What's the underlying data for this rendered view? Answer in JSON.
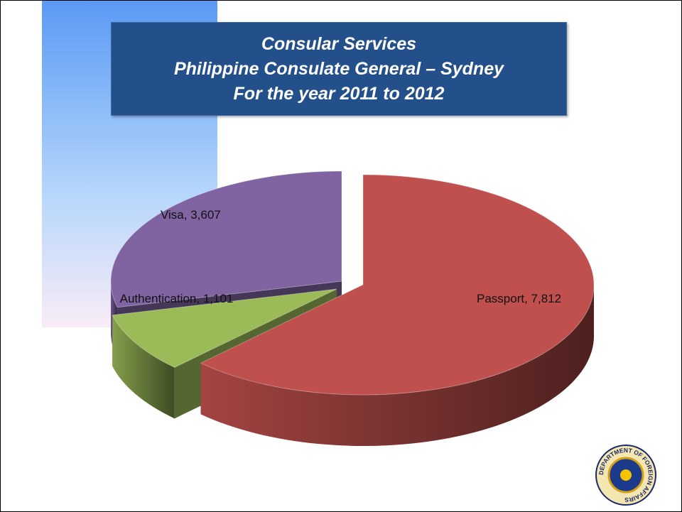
{
  "chart_data": {
    "type": "pie",
    "title": "Consular Services",
    "subtitle": [
      "Philippine Consulate General – Sydney",
      "For the year 2011 to 2012"
    ],
    "categories": [
      "Passport",
      "Authentication",
      "Visa"
    ],
    "values": [
      7812,
      1101,
      3607
    ],
    "value_labels": [
      "Passport, 7,812",
      "Authentication, 1,101",
      "Visa, 3,607"
    ],
    "colors": [
      "#c0504d",
      "#9bbb59",
      "#8064a2"
    ],
    "logo_text": "DEPARTMENT OF FOREIGN AFFAIRS"
  }
}
